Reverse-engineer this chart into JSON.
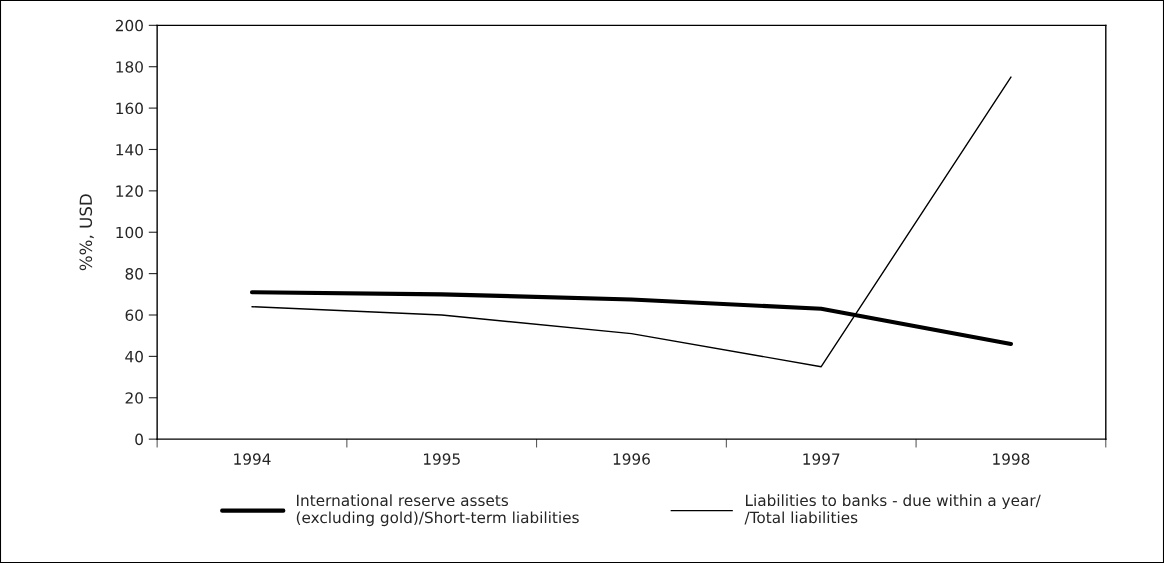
{
  "chart_data": {
    "type": "line",
    "ylabel": "%%, USD",
    "categories": [
      "1994",
      "1995",
      "1996",
      "1997",
      "1998"
    ],
    "series": [
      {
        "name": "International reserve assets\n(excluding gold)/Short-term liabilities",
        "color": "#000000",
        "values": [
          71,
          70,
          67.5,
          63,
          46
        ]
      },
      {
        "name": "Liabilities to banks - due within a year/\n/Total liabilities",
        "color": "#000000",
        "values": [
          64,
          60,
          51,
          35,
          175
        ]
      }
    ],
    "ylim": [
      0,
      200
    ],
    "yticks": [
      0,
      20,
      40,
      60,
      80,
      100,
      120,
      140,
      160,
      180,
      200
    ],
    "grid": false,
    "legend": "bottom",
    "marker": "none",
    "line_style": "solid"
  }
}
